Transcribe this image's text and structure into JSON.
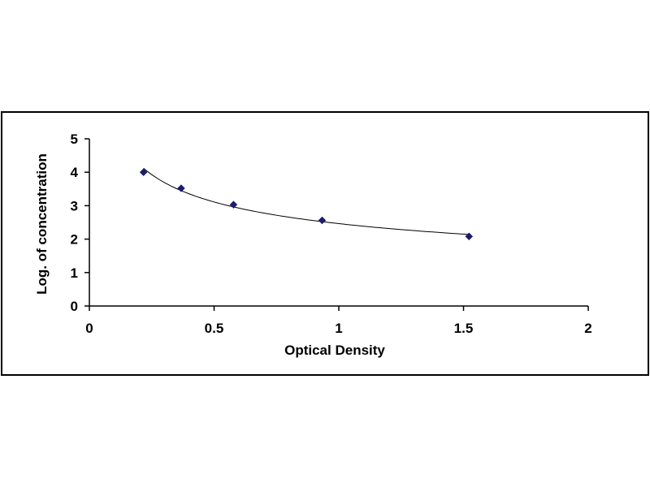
{
  "chart_data": {
    "type": "scatter",
    "title": "",
    "xlabel": "Optical Density",
    "ylabel": "Log. of concentration",
    "xlim": [
      0,
      2
    ],
    "ylim": [
      0,
      5
    ],
    "x_ticks": [
      0,
      0.5,
      1,
      1.5,
      2
    ],
    "y_ticks": [
      0,
      1,
      2,
      3,
      4,
      5
    ],
    "x_tick_labels": [
      "0",
      "0.5",
      "1",
      "1.5",
      "2"
    ],
    "y_tick_labels": [
      "0",
      "1",
      "2",
      "3",
      "4",
      "5"
    ],
    "grid": false,
    "legend": "none",
    "trendline": "smooth fitted curve through points",
    "series": [
      {
        "x": [
          0.217,
          0.368,
          0.578,
          0.933,
          1.522
        ],
        "y": [
          4.0,
          3.52,
          3.03,
          2.56,
          2.08
        ],
        "marker": "diamond",
        "color": "#1c1c6e"
      }
    ]
  }
}
